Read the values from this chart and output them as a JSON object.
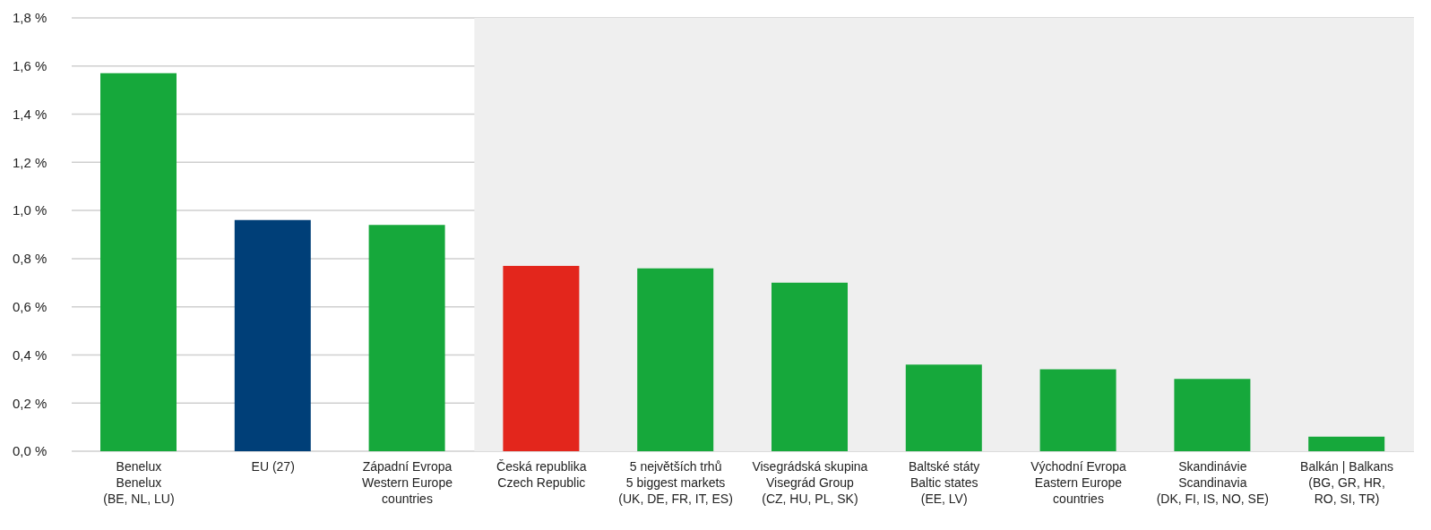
{
  "chart_data": {
    "type": "bar",
    "categories": [
      "Benelux\nBenelux\n(BE, NL, LU)",
      "EU (27)",
      "Západní Evropa\nWestern Europe\ncountries",
      "Česká republika\nCzech Republic",
      "5 největších trhů\n5 biggest markets\n(UK, DE, FR, IT, ES)",
      "Visegrádská skupina\nVisegrád Group\n(CZ, HU, PL, SK)",
      "Baltské státy\nBaltic states\n(EE, LV)",
      "Východní Evropa\nEastern Europe\ncountries",
      "Skandinávie\nScandinavia\n(DK, FI, IS, NO, SE)",
      "Balkán  |  Balkans\n(BG, GR, HR,\nRO, SI, TR)"
    ],
    "values": [
      1.57,
      0.96,
      0.94,
      0.77,
      0.76,
      0.7,
      0.36,
      0.34,
      0.3,
      0.06
    ],
    "colors": [
      "#16a83b",
      "#003f78",
      "#16a83b",
      "#e3261c",
      "#16a83b",
      "#16a83b",
      "#16a83b",
      "#16a83b",
      "#16a83b",
      "#16a83b"
    ],
    "ylim": [
      0,
      1.8
    ],
    "yticks": [
      {
        "value": 0,
        "label": "0,0 %"
      },
      {
        "value": 0.2,
        "label": "0,2 %"
      },
      {
        "value": 0.4,
        "label": "0,4 %"
      },
      {
        "value": 0.6,
        "label": "0,6 %"
      },
      {
        "value": 0.8,
        "label": "0,8 %"
      },
      {
        "value": 1.0,
        "label": "1,0 %"
      },
      {
        "value": 1.2,
        "label": "1,2 %"
      },
      {
        "value": 1.4,
        "label": "1,4 %"
      },
      {
        "value": 1.6,
        "label": "1,6 %"
      },
      {
        "value": 1.8,
        "label": "1,8 %"
      }
    ],
    "grid": "y",
    "legend": false,
    "bands": [
      {
        "axis": "x",
        "from": "Česká republika\nCzech Republic",
        "to": "Balkán  |  Balkans\n(BG, GR, HR,\nRO, SI, TR)",
        "color": "#efefef"
      }
    ]
  }
}
